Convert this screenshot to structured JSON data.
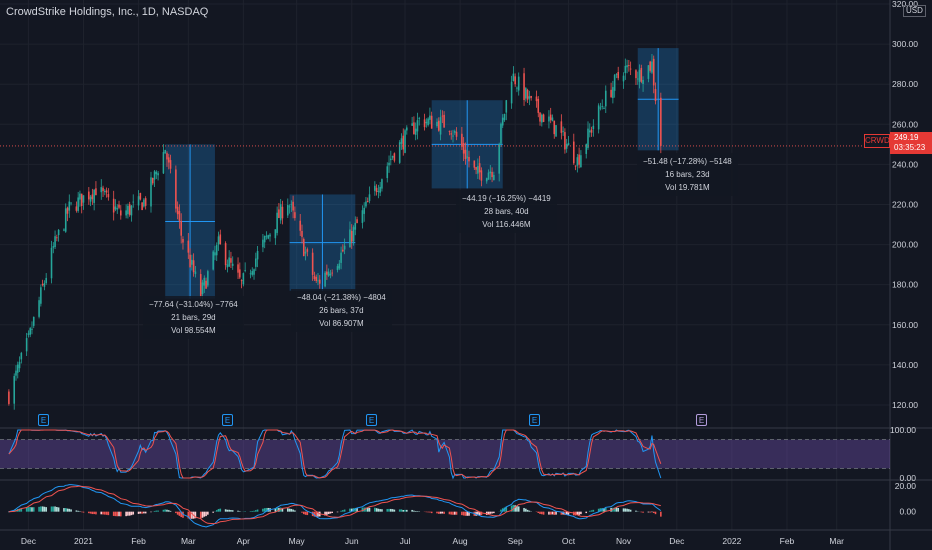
{
  "header": {
    "title": "CrowdStrike Holdings, Inc., 1D, NASDAQ",
    "currency": "USD"
  },
  "last_price": {
    "ticker": "CRWD",
    "price": "249.19",
    "countdown": "03:35:23"
  },
  "colors": {
    "up": "#26a69a",
    "down": "#ef5350",
    "background": "#131722",
    "grid": "#1e222d",
    "range_box": "rgba(33,150,243,0.25)",
    "stoch_k": "#2196f3",
    "stoch_d": "#ef5350",
    "stoch_band": "rgba(126,87,194,0.35)"
  },
  "annotations": [
    {
      "line1": "−77.64 (−31.04%) −7764",
      "line2": "21 bars, 29d",
      "line3": "Vol 98.554M"
    },
    {
      "line1": "−48.04 (−21.38%) −4804",
      "line2": "26 bars, 37d",
      "line3": "Vol 86.907M"
    },
    {
      "line1": "−44.19 (−16.25%) −4419",
      "line2": "28 bars, 40d",
      "line3": "Vol 116.446M"
    },
    {
      "line1": "−51.48 (−17.28%) −5148",
      "line2": "16 bars, 23d",
      "line3": "Vol 19.781M"
    }
  ],
  "earnings_marker": "E",
  "chart_data": [
    {
      "type": "candlestick",
      "title": "CrowdStrike Holdings, Inc., 1D, NASDAQ",
      "x_ticks": [
        "Dec",
        "2021",
        "Feb",
        "Mar",
        "Apr",
        "May",
        "Jun",
        "Jul",
        "Aug",
        "Sep",
        "Oct",
        "Nov",
        "Dec",
        "2022",
        "Feb",
        "Mar"
      ],
      "y_ticks": [
        120,
        140,
        160,
        180,
        200,
        220,
        240,
        260,
        280,
        300,
        320
      ],
      "ylim": [
        110,
        320
      ],
      "last_close": 249.19,
      "approx_close_path": [
        {
          "date": "2020-11-20",
          "close": 125
        },
        {
          "date": "2020-12-01",
          "close": 152
        },
        {
          "date": "2020-12-15",
          "close": 198
        },
        {
          "date": "2020-12-24",
          "close": 218
        },
        {
          "date": "2021-01-08",
          "close": 228
        },
        {
          "date": "2021-01-22",
          "close": 215
        },
        {
          "date": "2021-02-05",
          "close": 222
        },
        {
          "date": "2021-02-16",
          "close": 248
        },
        {
          "date": "2021-02-25",
          "close": 205
        },
        {
          "date": "2021-03-08",
          "close": 175
        },
        {
          "date": "2021-03-18",
          "close": 200
        },
        {
          "date": "2021-03-31",
          "close": 180
        },
        {
          "date": "2021-04-12",
          "close": 200
        },
        {
          "date": "2021-04-26",
          "close": 222
        },
        {
          "date": "2021-05-12",
          "close": 180
        },
        {
          "date": "2021-05-26",
          "close": 195
        },
        {
          "date": "2021-06-10",
          "close": 220
        },
        {
          "date": "2021-06-24",
          "close": 245
        },
        {
          "date": "2021-07-09",
          "close": 262
        },
        {
          "date": "2021-07-26",
          "close": 260
        },
        {
          "date": "2021-08-10",
          "close": 235
        },
        {
          "date": "2021-08-20",
          "close": 238
        },
        {
          "date": "2021-08-30",
          "close": 285
        },
        {
          "date": "2021-09-10",
          "close": 270
        },
        {
          "date": "2021-09-24",
          "close": 258
        },
        {
          "date": "2021-10-06",
          "close": 242
        },
        {
          "date": "2021-10-20",
          "close": 270
        },
        {
          "date": "2021-11-01",
          "close": 288
        },
        {
          "date": "2021-11-10",
          "close": 285
        },
        {
          "date": "2021-11-17",
          "close": 290
        },
        {
          "date": "2021-11-22",
          "close": 249.19
        }
      ],
      "measure_ranges": [
        {
          "start": "2021-02-16",
          "end": "2021-03-16",
          "high": 250,
          "low": 173,
          "change": -77.64,
          "pct": -31.04
        },
        {
          "start": "2021-04-27",
          "end": "2021-06-03",
          "high": 225,
          "low": 177,
          "change": -48.04,
          "pct": -21.38
        },
        {
          "start": "2021-07-16",
          "end": "2021-08-25",
          "high": 272,
          "low": 228,
          "change": -44.19,
          "pct": -16.25
        },
        {
          "start": "2021-11-09",
          "end": "2021-12-02",
          "high": 298,
          "low": 247,
          "change": -51.48,
          "pct": -17.28
        }
      ],
      "earnings_dates": [
        "2020-12-01",
        "2021-03-16",
        "2021-06-02",
        "2021-08-31"
      ],
      "upcoming_earnings_date": "2021-12-01"
    },
    {
      "type": "line",
      "name": "stochastic",
      "y_ticks": [
        100,
        0
      ],
      "y_tick_labels": [
        "100.00",
        "0.00"
      ],
      "band": [
        20,
        80
      ],
      "ylim": [
        0,
        100
      ]
    },
    {
      "type": "line",
      "name": "macd",
      "y_ticks": [
        20,
        0
      ],
      "y_tick_labels": [
        "20.00",
        "0.00"
      ],
      "ylim": [
        -12,
        24
      ]
    }
  ]
}
